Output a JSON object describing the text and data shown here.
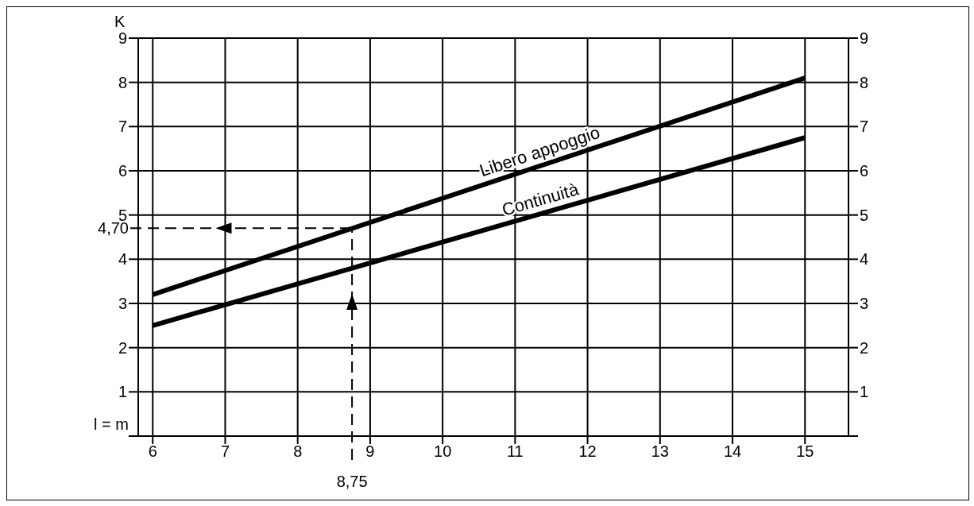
{
  "chart_data": {
    "type": "line",
    "xlabel": "l = m",
    "ylabel": "K",
    "x": [
      6,
      15
    ],
    "series": [
      {
        "name": "Libero appoggio",
        "color": "#000000",
        "values": [
          3.2,
          8.1
        ]
      },
      {
        "name": "Continuità",
        "color": "#000000",
        "values": [
          2.5,
          6.75
        ]
      }
    ],
    "xlim": [
      5.8,
      15.6
    ],
    "xticks": [
      6,
      7,
      8,
      9,
      10,
      11,
      12,
      13,
      14,
      15
    ],
    "ylim": [
      0,
      9
    ],
    "yticks": [
      {
        "value": 0,
        "label": null
      },
      1,
      2,
      3,
      4,
      5,
      6,
      7,
      8,
      9
    ],
    "y2lim": [
      0,
      9
    ],
    "y2ticks": [
      {
        "value": 0,
        "label": null
      },
      1,
      2,
      3,
      4,
      5,
      6,
      7,
      8,
      9
    ],
    "ref_lines": [
      {
        "axis": "y",
        "value": 4.7,
        "label": "4,70",
        "line_style": "dashed",
        "color": "#000000"
      },
      {
        "axis": "x",
        "value": 8.75,
        "label": "8,75",
        "line_style": "dashed",
        "color": "#000000"
      }
    ],
    "grid": true,
    "marker": "none",
    "line_style": "solid"
  }
}
